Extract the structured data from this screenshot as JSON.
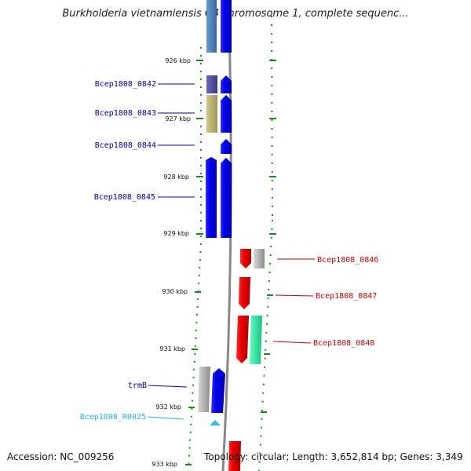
{
  "title": "Burkholderia vietnamiensis G4 chromosome 1, complete sequenc...",
  "accession": "Accession: NC_009256",
  "topology": "Topology: circular; Length: 3,652,814 bp; Genes: 3,349",
  "ruler": {
    "ticks": [
      {
        "label": "926 kbp"
      },
      {
        "label": "927 kbp"
      },
      {
        "label": "928 kbp"
      },
      {
        "label": "929 kbp"
      },
      {
        "label": "930 kbp"
      },
      {
        "label": "931 kbp"
      },
      {
        "label": "932 kbp"
      },
      {
        "label": "933 kbp"
      }
    ]
  },
  "genes": {
    "left": [
      {
        "name": "Bcep1808_0842"
      },
      {
        "name": "Bcep1808_0843"
      },
      {
        "name": "Bcep1808_0844"
      },
      {
        "name": "Bcep1808_0845"
      },
      {
        "name": "trmB"
      },
      {
        "name": "Bcep1808_R0025"
      }
    ],
    "right": [
      {
        "name": "Bcep1808_0846"
      },
      {
        "name": "Bcep1808_0847"
      },
      {
        "name": "Bcep1808_0848"
      }
    ]
  },
  "colors": {
    "forward_gene": "#0000ee",
    "reverse_gene": "#ee0000",
    "cog_blue_gray": "#4a78b0",
    "cog_purple": "#4b4a98",
    "cog_olive": "#b4ae6c",
    "cog_gray": "#a8a8a8",
    "cog_green": "#2ee8a0",
    "rna_cyan": "#33bbe6",
    "label_forward": "#0000aa",
    "label_reverse": "#cc0000",
    "label_rna": "#22b8d8",
    "backbone": "#888888",
    "tick_green": "#1a8a1a"
  }
}
